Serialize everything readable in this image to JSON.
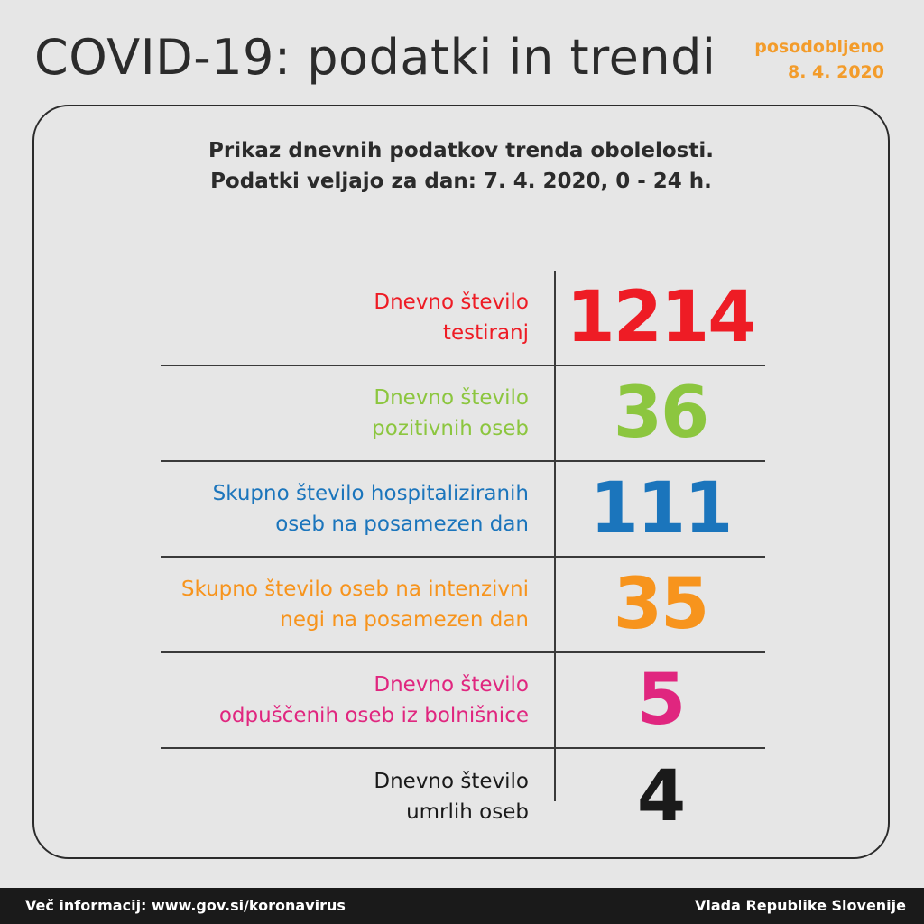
{
  "header": {
    "title": "COVID-19: podatki in trendi",
    "updated_label": "posodobljeno",
    "updated_date": "8. 4. 2020"
  },
  "card": {
    "subtitle_line1": "Prikaz dnevnih podatkov trenda obolelosti.",
    "subtitle_line2": "Podatki veljajo za dan: 7. 4. 2020, 0 - 24 h."
  },
  "stats": [
    {
      "label_line1": "Dnevno število",
      "label_line2": "testiranj",
      "value": "1214",
      "color": "#ee1c25"
    },
    {
      "label_line1": "Dnevno število",
      "label_line2": "pozitivnih oseb",
      "value": "36",
      "color": "#8cc63f"
    },
    {
      "label_line1": "Skupno število hospitaliziranih",
      "label_line2": "oseb na posamezen dan",
      "value": "111",
      "color": "#1b75bc"
    },
    {
      "label_line1": "Skupno število oseb na intenzivni",
      "label_line2": "negi na posamezen dan",
      "value": "35",
      "color": "#f7941d"
    },
    {
      "label_line1": "Dnevno število",
      "label_line2": "odpuščenih oseb iz bolnišnice",
      "value": "5",
      "color": "#e0267f"
    },
    {
      "label_line1": "Dnevno število",
      "label_line2": "umrlih oseb",
      "value": "4",
      "color": "#1a1a1a"
    }
  ],
  "footer": {
    "info": "Več informacij: www.gov.si/koronavirus",
    "publisher": "Vlada Republike Slovenije"
  },
  "colors": {
    "accent": "#f39c2b",
    "text": "#2b2b2b",
    "background": "#e6e6e6",
    "footer_bg": "#1a1a1a"
  }
}
